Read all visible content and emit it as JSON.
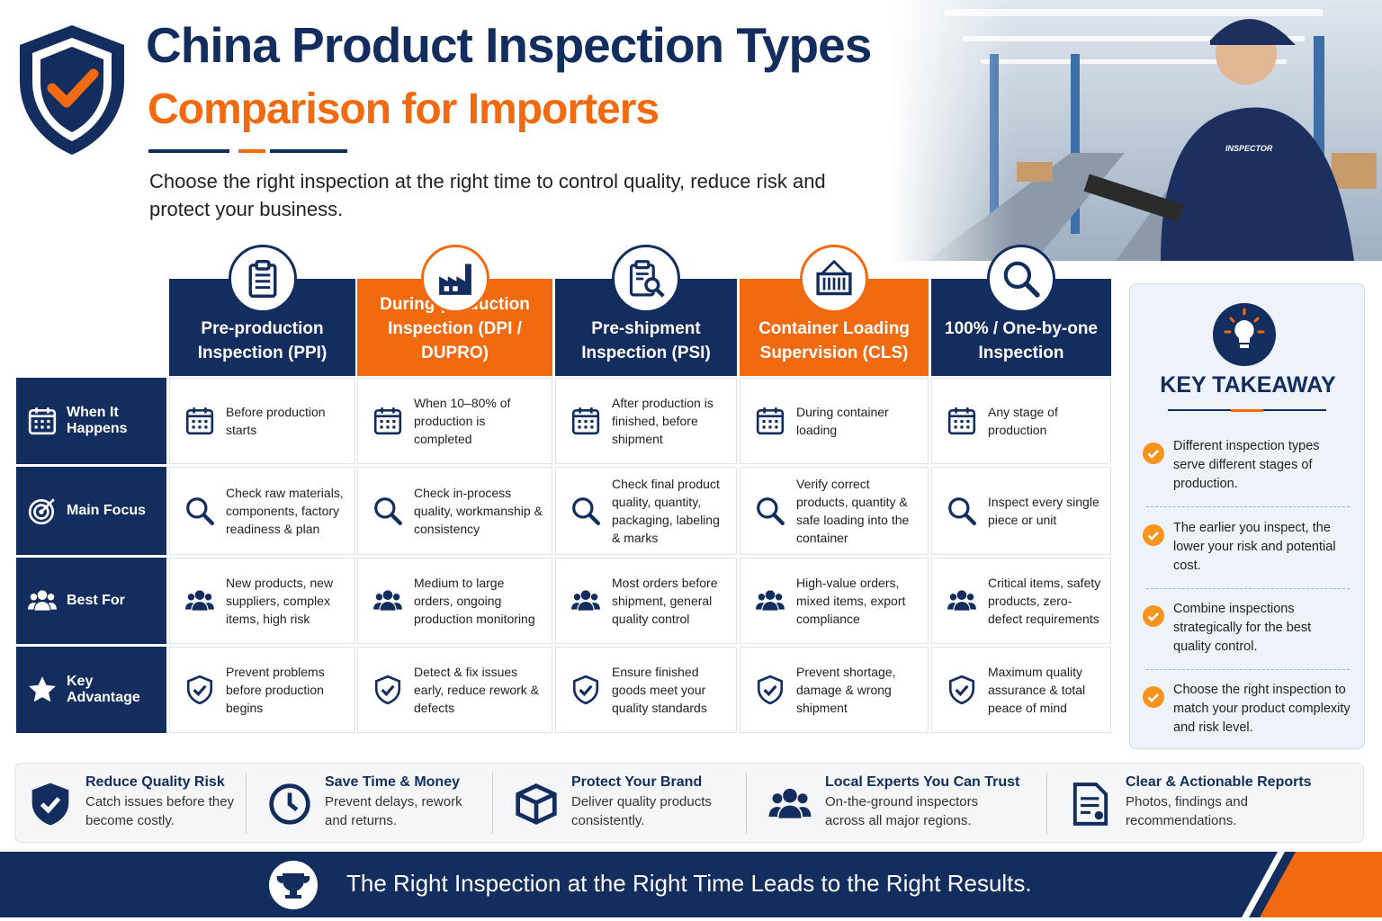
{
  "header": {
    "title": "China Product Inspection Types",
    "subtitle": "Comparison for Importers",
    "description": "Choose the right inspection at the right time to control quality, reduce risk and protect your business."
  },
  "photo": {
    "badge": "INSPECTOR"
  },
  "table": {
    "columns": [
      "Pre-production Inspection (PPI)",
      "During-production Inspection (DPI / DUPRO)",
      "Pre-shipment Inspection (PSI)",
      "Container Loading Supervision (CLS)",
      "100% / One-by-one Inspection"
    ],
    "rows": [
      {
        "label": "When It Happens",
        "cells": [
          "Before production starts",
          "When 10–80% of production is completed",
          "After production is finished, before shipment",
          "During container loading",
          "Any stage of production"
        ]
      },
      {
        "label": "Main Focus",
        "cells": [
          "Check raw materials, components, factory readiness & plan",
          "Check in-process quality, workmanship & consistency",
          "Check final product quality, quantity, packaging, labeling & marks",
          "Verify correct products, quantity & safe loading into the container",
          "Inspect every single piece or unit"
        ]
      },
      {
        "label": "Best For",
        "cells": [
          "New products, new suppliers, complex items, high risk",
          "Medium to large orders, ongoing production monitoring",
          "Most orders before shipment, general quality control",
          "High-value orders, mixed items, export compliance",
          "Critical items, safety products, zero-defect requirements"
        ]
      },
      {
        "label": "Key Advantage",
        "cells": [
          "Prevent problems before production begins",
          "Detect & fix issues early, reduce rework & defects",
          "Ensure finished goods meet your quality standards",
          "Prevent shortage, damage & wrong shipment",
          "Maximum quality assurance & total peace of mind"
        ]
      }
    ]
  },
  "takeaway": {
    "title": "KEY TAKEAWAY",
    "items": [
      "Different inspection types serve different stages of production.",
      "The earlier you inspect, the lower your risk and potential cost.",
      "Combine inspections strategically for the best quality control.",
      "Choose the right inspection to match your product complexity and risk level."
    ]
  },
  "benefits": [
    {
      "title": "Reduce Quality Risk",
      "text": "Catch issues before they become costly."
    },
    {
      "title": "Save Time & Money",
      "text": "Prevent delays, rework and returns."
    },
    {
      "title": "Protect Your Brand",
      "text": "Deliver quality products consistently."
    },
    {
      "title": "Local Experts You Can Trust",
      "text": "On-the-ground inspectors across all major regions."
    },
    {
      "title": "Clear & Actionable Reports",
      "text": "Photos, findings and recommendations."
    }
  ],
  "footer": {
    "text": "The Right Inspection at the Right Time Leads to the Right Results."
  }
}
